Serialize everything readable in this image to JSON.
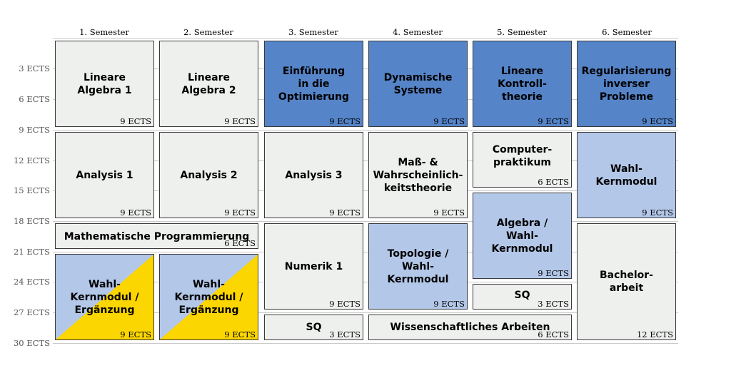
{
  "semesters": [
    "1. Semester",
    "2. Semester",
    "3. Semester",
    "4. Semester",
    "5. Semester",
    "6. Semester"
  ],
  "y_ticks": [
    "3 ECTS",
    "6 ECTS",
    "9 ECTS",
    "12 ECTS",
    "15 ECTS",
    "18 ECTS",
    "21 ECTS",
    "24 ECTS",
    "27 ECTS",
    "30 ECTS"
  ],
  "colors": {
    "dark_blue": "#5584c8",
    "light_blue": "#b3c7e8",
    "gray": "#eef0ee",
    "yellow": "#fcd600"
  },
  "modules": {
    "la1": {
      "name": "Lineare\nAlgebra 1",
      "ects": "9 ECTS"
    },
    "la2": {
      "name": "Lineare\nAlgebra 2",
      "ects": "9 ECTS"
    },
    "opt": {
      "name": "Einführung\nin die\nOptimierung",
      "ects": "9 ECTS"
    },
    "dyn": {
      "name": "Dynamische\nSysteme",
      "ects": "9 ECTS"
    },
    "lkt": {
      "name": "Lineare\nKontroll-\ntheorie",
      "ects": "9 ECTS"
    },
    "reg": {
      "name": "Regularisierung\ninverser\nProbleme",
      "ects": "9 ECTS"
    },
    "an1": {
      "name": "Analysis 1",
      "ects": "9 ECTS"
    },
    "an2": {
      "name": "Analysis 2",
      "ects": "9 ECTS"
    },
    "an3": {
      "name": "Analysis 3",
      "ects": "9 ECTS"
    },
    "mass": {
      "name": "Maß- &\nWahrscheinlich-\nkeitstheorie",
      "ects": "9 ECTS"
    },
    "comp": {
      "name": "Computer-\npraktikum",
      "ects": "6 ECTS"
    },
    "wkm": {
      "name": "Wahl-Kernmodul",
      "ects": "9 ECTS"
    },
    "mprog": {
      "name": "Mathematische Programmierung",
      "ects": "6 ECTS"
    },
    "num1": {
      "name": "Numerik 1",
      "ects": "9 ECTS"
    },
    "topo": {
      "name": "Topologie /\nWahl-Kernmodul",
      "ects": "9 ECTS"
    },
    "alg": {
      "name": "Algebra /\nWahl-Kernmodul",
      "ects": "9 ECTS"
    },
    "wke1": {
      "name": "Wahl-Kernmodul /\nErgänzung",
      "ects": "9 ECTS"
    },
    "wke2": {
      "name": "Wahl-Kernmodul /\nErgänzung",
      "ects": "9 ECTS"
    },
    "sq5": {
      "name": "SQ",
      "ects": "3 ECTS"
    },
    "sq3": {
      "name": "SQ",
      "ects": "3 ECTS"
    },
    "wiss": {
      "name": "Wissenschaftliches Arbeiten",
      "ects": "6 ECTS"
    },
    "ba": {
      "name": "Bachelor-\narbeit",
      "ects": "12 ECTS"
    }
  }
}
